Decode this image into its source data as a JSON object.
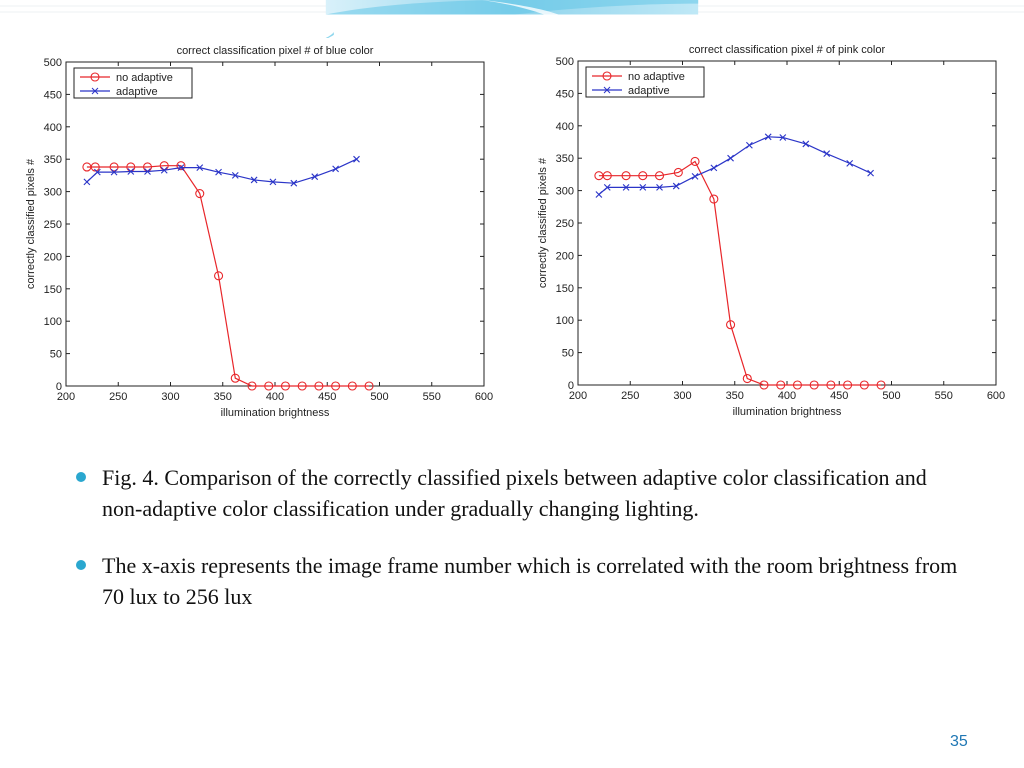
{
  "bullets": [
    "Fig. 4. Comparison of the correctly classified pixels between adaptive color classification and non-adaptive color classification under gradually changing lighting.",
    "The x-axis represents the image frame number which is correlated with the room brightness from 70 lux to 256 lux"
  ],
  "page_number": "35",
  "colors": {
    "theme_cyan": "#2aa7cf",
    "no_adaptive": "#e8262a",
    "adaptive": "#2b35c8"
  },
  "chart_data": [
    {
      "type": "line",
      "title": "correct classification pixel # of blue color",
      "xlabel": "illumination brightness",
      "ylabel": "correctly classified pixels #",
      "xlim": [
        200,
        600
      ],
      "ylim": [
        0,
        500
      ],
      "xticks": [
        "200",
        "250",
        "300",
        "350",
        "400",
        "450",
        "500",
        "550",
        "600"
      ],
      "yticks": [
        "0",
        "50",
        "100",
        "150",
        "200",
        "250",
        "300",
        "350",
        "400",
        "450",
        "500"
      ],
      "legend": "top-left",
      "series": [
        {
          "name": "no adaptive",
          "color": "#e8262a",
          "marker": "o",
          "x": [
            220,
            228,
            246,
            262,
            278,
            294,
            310,
            328,
            346,
            362,
            378,
            394,
            410,
            426,
            442,
            458,
            474,
            490
          ],
          "y": [
            338,
            338,
            338,
            338,
            338,
            340,
            340,
            297,
            170,
            12,
            0,
            0,
            0,
            0,
            0,
            0,
            0,
            0
          ]
        },
        {
          "name": "adaptive",
          "color": "#2b35c8",
          "marker": "x",
          "x": [
            220,
            230,
            246,
            262,
            278,
            294,
            310,
            328,
            346,
            362,
            380,
            398,
            418,
            438,
            458,
            478
          ],
          "y": [
            315,
            330,
            330,
            331,
            331,
            333,
            337,
            337,
            330,
            325,
            318,
            315,
            313,
            323,
            335,
            350
          ]
        }
      ]
    },
    {
      "type": "line",
      "title": "correct classification pixel # of pink color",
      "xlabel": "illumination brightness",
      "ylabel": "correctly classified pixels #",
      "xlim": [
        200,
        600
      ],
      "ylim": [
        0,
        500
      ],
      "xticks": [
        "200",
        "250",
        "300",
        "350",
        "400",
        "450",
        "500",
        "550",
        "600"
      ],
      "yticks": [
        "0",
        "50",
        "100",
        "150",
        "200",
        "250",
        "300",
        "350",
        "400",
        "450",
        "500"
      ],
      "legend": "top-left",
      "series": [
        {
          "name": "no adaptive",
          "color": "#e8262a",
          "marker": "o",
          "x": [
            220,
            228,
            246,
            262,
            278,
            296,
            312,
            330,
            346,
            362,
            378,
            394,
            410,
            426,
            442,
            458,
            474,
            490
          ],
          "y": [
            323,
            323,
            323,
            323,
            323,
            328,
            345,
            287,
            93,
            10,
            0,
            0,
            0,
            0,
            0,
            0,
            0,
            0
          ]
        },
        {
          "name": "adaptive",
          "color": "#2b35c8",
          "marker": "x",
          "x": [
            220,
            228,
            246,
            262,
            278,
            294,
            312,
            330,
            346,
            364,
            382,
            396,
            418,
            438,
            460,
            480
          ],
          "y": [
            294,
            305,
            305,
            305,
            305,
            307,
            322,
            335,
            350,
            370,
            383,
            382,
            372,
            357,
            342,
            327
          ]
        }
      ]
    }
  ]
}
